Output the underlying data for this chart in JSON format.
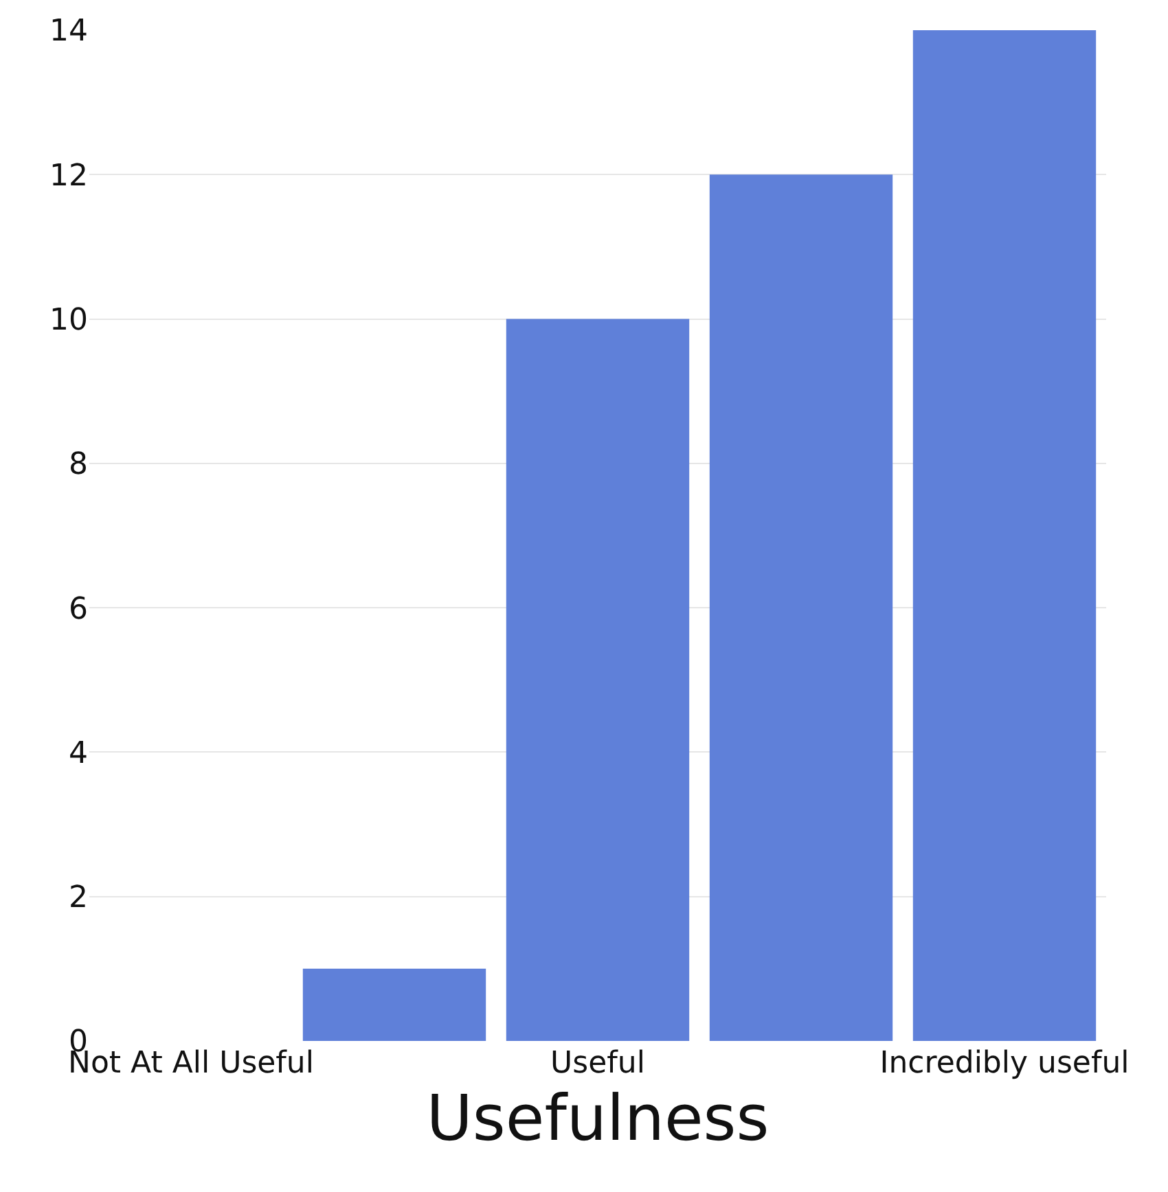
{
  "chart_data": {
    "type": "bar",
    "xlabel": "Usefulness",
    "categories": [
      "Not At All Useful",
      null,
      "Useful",
      null,
      "Incredibly useful"
    ],
    "values": [
      0,
      1,
      10,
      12,
      14
    ],
    "color": "#5f80d9",
    "ylim": [
      0,
      14
    ],
    "yticks": [
      0,
      2,
      4,
      6,
      8,
      10,
      12,
      14
    ],
    "grid": "y",
    "legend": false
  }
}
